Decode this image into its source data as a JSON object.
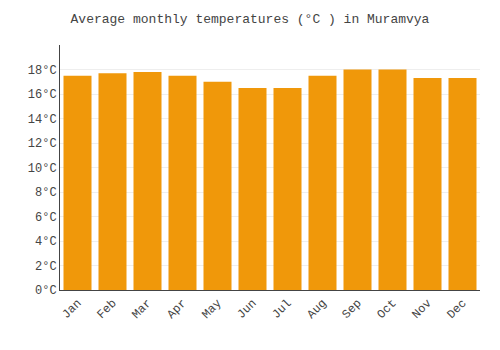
{
  "chart_data": {
    "type": "bar",
    "title": "Average monthly temperatures (°C ) in Muramvya",
    "categories": [
      "Jan",
      "Feb",
      "Mar",
      "Apr",
      "May",
      "Jun",
      "Jul",
      "Aug",
      "Sep",
      "Oct",
      "Nov",
      "Dec"
    ],
    "values": [
      17.5,
      17.7,
      17.8,
      17.5,
      17.0,
      16.5,
      16.5,
      17.5,
      18.0,
      18.0,
      17.3,
      17.3
    ],
    "color": "#F0980A",
    "ylim": [
      0,
      20
    ],
    "yticks": [
      {
        "value": 0,
        "label": "0°C"
      },
      {
        "value": 2,
        "label": "2°C"
      },
      {
        "value": 4,
        "label": "4°C"
      },
      {
        "value": 6,
        "label": "6°C"
      },
      {
        "value": 8,
        "label": "8°C"
      },
      {
        "value": 10,
        "label": "10°C"
      },
      {
        "value": 12,
        "label": "12°C"
      },
      {
        "value": 14,
        "label": "14°C"
      },
      {
        "value": 16,
        "label": "16°C"
      },
      {
        "value": 18,
        "label": "18°C"
      }
    ],
    "grid": true
  }
}
